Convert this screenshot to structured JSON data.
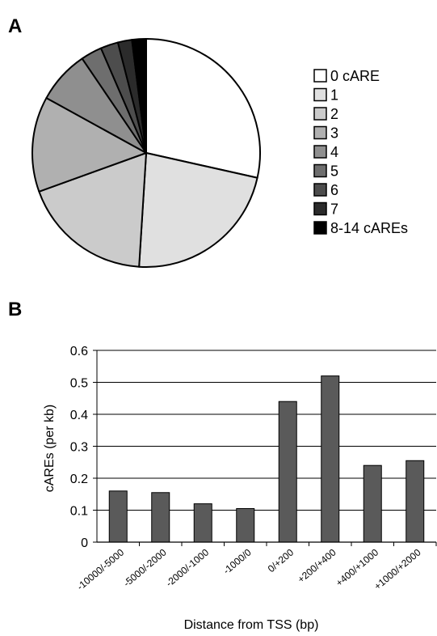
{
  "figure": {
    "panel_a_label": "A",
    "panel_b_label": "B"
  },
  "chart_data": [
    {
      "type": "pie",
      "title": "",
      "categories": [
        "0 cARE",
        "1",
        "2",
        "3",
        "4",
        "5",
        "6",
        "7",
        "8-14 cAREs"
      ],
      "values": [
        28.5,
        22.5,
        18.5,
        13.5,
        7.5,
        3.0,
        2.5,
        2.0,
        2.0
      ],
      "colors": [
        "#ffffff",
        "#e0e0e0",
        "#cbcbcb",
        "#b0b0b0",
        "#8f8f8f",
        "#6e6e6e",
        "#4d4d4d",
        "#2b2b2b",
        "#000000"
      ],
      "legend_position": "right"
    },
    {
      "type": "bar",
      "title": "",
      "categories": [
        "-10000/-5000",
        "-5000/-2000",
        "-2000/-1000",
        "-1000/0",
        "0/+200",
        "+200/+400",
        "+400/+1000",
        "+1000/+2000"
      ],
      "values": [
        0.16,
        0.155,
        0.12,
        0.105,
        0.44,
        0.52,
        0.24,
        0.255
      ],
      "xlabel": "Distance from TSS (bp)",
      "ylabel": "cAREs (per kb)",
      "ylim": [
        0,
        0.6
      ],
      "yticks": [
        "0",
        "0.1",
        "0.2",
        "0.3",
        "0.4",
        "0.5",
        "0.6"
      ],
      "bar_color": "#5a5a5a",
      "grid": true
    }
  ]
}
